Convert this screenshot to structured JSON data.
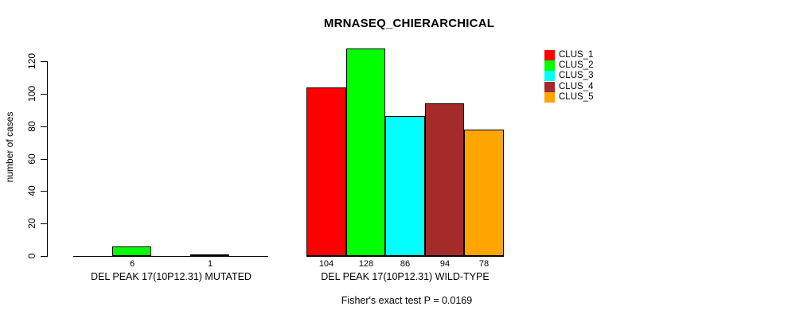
{
  "figure": {
    "title": "MRNASEQ_CHIERARCHICAL",
    "footnote": "Fisher's exact test P = 0.0169"
  },
  "chart_data": {
    "type": "bar",
    "title": "MRNASEQ_CHIERARCHICAL",
    "xlabel": "",
    "ylabel": "number of cases",
    "ylim": [
      0,
      128
    ],
    "yticks": [
      0,
      20,
      40,
      60,
      80,
      100,
      120
    ],
    "grid": false,
    "categories": [
      "DEL PEAK 17(10P12.31) MUTATED",
      "DEL PEAK 17(10P12.31) WILD-TYPE"
    ],
    "series": [
      {
        "name": "CLUS_1",
        "color": "#FF0000",
        "values": [
          0,
          104
        ]
      },
      {
        "name": "CLUS_2",
        "color": "#00FF00",
        "values": [
          6,
          128
        ]
      },
      {
        "name": "CLUS_3",
        "color": "#00FFFF",
        "values": [
          0,
          86
        ]
      },
      {
        "name": "CLUS_4",
        "color": "#A52A2A",
        "values": [
          1,
          94
        ]
      },
      {
        "name": "CLUS_5",
        "color": "#FFA500",
        "values": [
          0,
          78
        ]
      }
    ],
    "bar_value_labels": {
      "mutated_shown": [
        6,
        1
      ],
      "wild_type_shown": [
        104,
        128,
        86,
        94,
        78
      ],
      "note": "labels shown under nonzero bars only"
    },
    "annotation": "Fisher's exact test P = 0.0169",
    "legend_position": "top-right",
    "bar_border_color": "#000000"
  }
}
